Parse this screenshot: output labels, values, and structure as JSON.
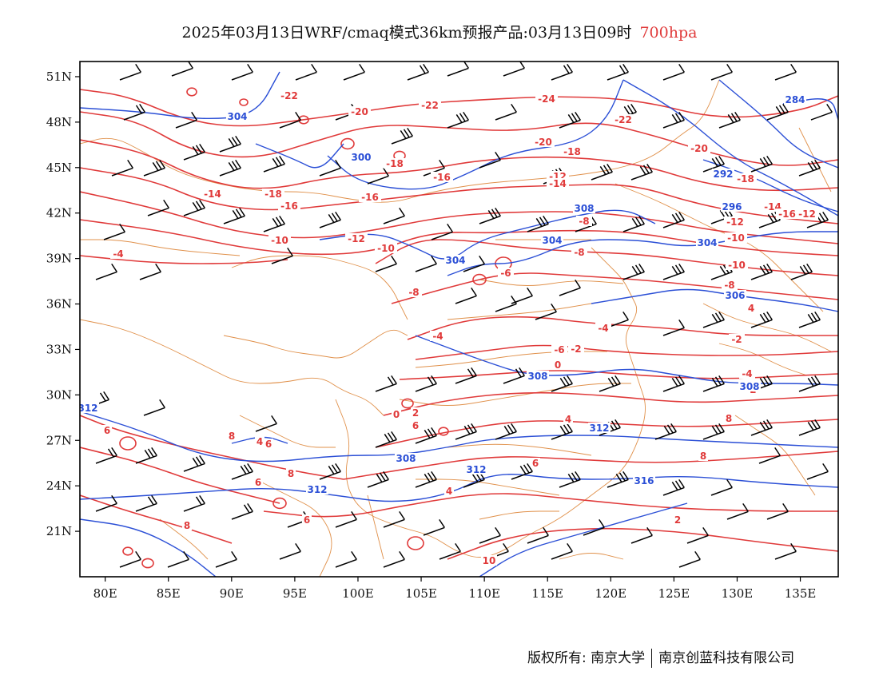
{
  "title": {
    "main": "2025年03月13日WRF/cmaq模式36km预报产品:03月13日09时",
    "level": "700hpa"
  },
  "map": {
    "lon_range": [
      78,
      138
    ],
    "lat_range": [
      18,
      52
    ],
    "lon_ticks": [
      "80E",
      "85E",
      "90E",
      "95E",
      "100E",
      "105E",
      "110E",
      "115E",
      "120E",
      "125E",
      "130E",
      "135E"
    ],
    "lat_ticks": [
      "51N",
      "48N",
      "45N",
      "42N",
      "39N",
      "36N",
      "33N",
      "30N",
      "27N",
      "24N",
      "21N"
    ],
    "colors": {
      "temperature": "#e03a3a",
      "height": "#2b4fd6",
      "boundary": "#e0904a",
      "wind": "#000000"
    },
    "temperature_labels": [
      "-22",
      "-20",
      "-22",
      "-24",
      "-22",
      "-20",
      "-20",
      "-18",
      "-18",
      "-16",
      "-14",
      "-18",
      "-16",
      "-16",
      "-12",
      "-10",
      "-14",
      "-8",
      "-12",
      "-10",
      "-12",
      "-10",
      "-8",
      "-6",
      "-4",
      "-8",
      "-4",
      "-2",
      "-2",
      "0",
      "4",
      "6",
      "8",
      "10",
      "8",
      "6",
      "4",
      "2",
      "4",
      "6",
      "8",
      "8",
      "2",
      "-4",
      "6",
      "-18",
      "-14",
      "-16",
      "-12",
      "-10",
      "-8",
      "-6",
      "-4",
      "-2",
      "0",
      "4",
      "6",
      "6",
      "8"
    ],
    "height_labels": [
      "304",
      "300",
      "304",
      "304",
      "308",
      "306",
      "308",
      "308",
      "312",
      "312",
      "312",
      "316",
      "284",
      "292",
      "296",
      "304",
      "308",
      "312"
    ]
  },
  "footer": {
    "copyright": "版权所有: 南京大学",
    "company": "南京创蓝科技有限公司"
  }
}
